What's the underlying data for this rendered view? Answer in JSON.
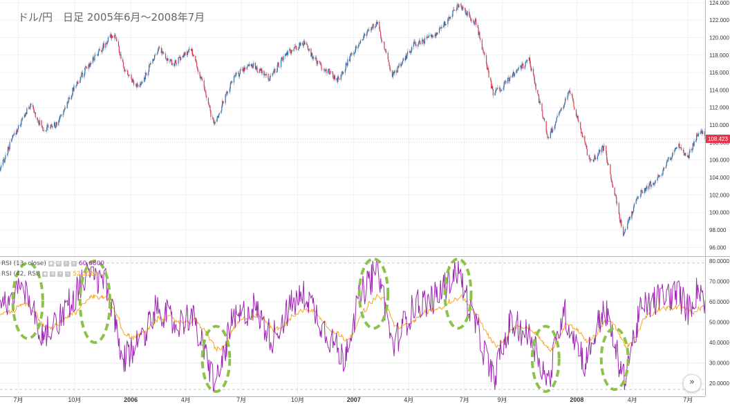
{
  "title": "ドル/円　日足 2005年6月～2008年7月",
  "colors": {
    "up": "#2a6fb0",
    "down": "#e8334a",
    "wick": "#8a98a8",
    "rsi13": "#9c27b0",
    "rsi42": "#f5a623",
    "grid": "#eef0f3",
    "axis_line": "#b2b5be",
    "highlight": "#8bc34a",
    "price_badge": "#e8334a"
  },
  "price_badge": "108.423",
  "legend": [
    {
      "label": "RSI (13, close)",
      "value": "60.6800"
    },
    {
      "label": "RSI (42, RSI)",
      "value": "52.2580"
    }
  ],
  "nav_glyph": "»",
  "chart_data": [
    {
      "type": "candlestick",
      "title": "ドル/円　日足 2005年6月～2008年7月",
      "ylim": [
        95,
        124.3
      ],
      "y_ticks": [
        "96.000",
        "98.000",
        "100.000",
        "102.000",
        "104.000",
        "106.000",
        "108.000",
        "110.000",
        "112.000",
        "114.000",
        "116.000",
        "118.000",
        "120.000",
        "122.000",
        "124.000"
      ],
      "last_price": 108.423,
      "x_tick_labels": [
        "7月",
        "10月",
        "2006",
        "4月",
        "7月",
        "10月",
        "2007",
        "4月",
        "7月",
        "9月",
        "2008",
        "4月",
        "7月"
      ],
      "anchors": [
        {
          "d": "2005-06-01",
          "p": 104.8
        },
        {
          "d": "2005-06-20",
          "p": 108.3
        },
        {
          "d": "2005-07-20",
          "p": 112.3
        },
        {
          "d": "2005-08-10",
          "p": 109.6
        },
        {
          "d": "2005-09-01",
          "p": 110.0
        },
        {
          "d": "2005-10-01",
          "p": 114.4
        },
        {
          "d": "2005-11-01",
          "p": 117.7
        },
        {
          "d": "2005-12-05",
          "p": 120.6
        },
        {
          "d": "2005-12-20",
          "p": 116.4
        },
        {
          "d": "2006-01-15",
          "p": 114.2
        },
        {
          "d": "2006-02-15",
          "p": 118.9
        },
        {
          "d": "2006-03-10",
          "p": 116.9
        },
        {
          "d": "2006-04-10",
          "p": 118.6
        },
        {
          "d": "2006-05-01",
          "p": 114.1
        },
        {
          "d": "2006-05-17",
          "p": 109.9
        },
        {
          "d": "2006-06-15",
          "p": 115.1
        },
        {
          "d": "2006-07-15",
          "p": 117.1
        },
        {
          "d": "2006-08-15",
          "p": 115.3
        },
        {
          "d": "2006-09-10",
          "p": 117.9
        },
        {
          "d": "2006-10-10",
          "p": 119.4
        },
        {
          "d": "2006-11-01",
          "p": 117.2
        },
        {
          "d": "2006-12-05",
          "p": 115.2
        },
        {
          "d": "2007-01-10",
          "p": 119.6
        },
        {
          "d": "2007-02-08",
          "p": 121.8
        },
        {
          "d": "2007-03-05",
          "p": 115.6
        },
        {
          "d": "2007-04-10",
          "p": 119.2
        },
        {
          "d": "2007-05-15",
          "p": 120.4
        },
        {
          "d": "2007-06-22",
          "p": 123.8
        },
        {
          "d": "2007-07-20",
          "p": 121.7
        },
        {
          "d": "2007-08-17",
          "p": 113.5
        },
        {
          "d": "2007-09-15",
          "p": 115.4
        },
        {
          "d": "2007-10-15",
          "p": 117.4
        },
        {
          "d": "2007-11-15",
          "p": 108.5
        },
        {
          "d": "2007-12-20",
          "p": 113.9
        },
        {
          "d": "2008-01-22",
          "p": 105.8
        },
        {
          "d": "2008-02-15",
          "p": 107.4
        },
        {
          "d": "2008-03-17",
          "p": 97.5
        },
        {
          "d": "2008-04-10",
          "p": 101.9
        },
        {
          "d": "2008-05-15",
          "p": 104.2
        },
        {
          "d": "2008-06-15",
          "p": 107.8
        },
        {
          "d": "2008-07-01",
          "p": 106.4
        },
        {
          "d": "2008-07-20",
          "p": 109.6
        },
        {
          "d": "2008-07-29",
          "p": 108.4
        }
      ]
    },
    {
      "type": "line",
      "series": [
        {
          "name": "RSI (13, close)",
          "last": 60.68
        },
        {
          "name": "RSI (42, RSI)",
          "last": 52.258
        }
      ],
      "ylim": [
        15,
        82
      ],
      "y_ticks": [
        "20.0000",
        "30.0000",
        "40.0000",
        "50.0000",
        "60.0000",
        "70.0000",
        "80.0000"
      ],
      "dashed_levels": [
        17,
        30,
        70,
        79
      ],
      "anchors": [
        {
          "d": "2005-06-01",
          "v": 55
        },
        {
          "d": "2005-07-10",
          "v": 68
        },
        {
          "d": "2005-08-10",
          "v": 42
        },
        {
          "d": "2005-09-15",
          "v": 56
        },
        {
          "d": "2005-10-20",
          "v": 72
        },
        {
          "d": "2005-11-20",
          "v": 70
        },
        {
          "d": "2005-12-20",
          "v": 30
        },
        {
          "d": "2006-01-20",
          "v": 44
        },
        {
          "d": "2006-02-15",
          "v": 58
        },
        {
          "d": "2006-03-15",
          "v": 48
        },
        {
          "d": "2006-04-10",
          "v": 54
        },
        {
          "d": "2006-05-20",
          "v": 19
        },
        {
          "d": "2006-06-15",
          "v": 49
        },
        {
          "d": "2006-07-20",
          "v": 58
        },
        {
          "d": "2006-08-20",
          "v": 42
        },
        {
          "d": "2006-09-20",
          "v": 58
        },
        {
          "d": "2006-10-15",
          "v": 64
        },
        {
          "d": "2006-11-15",
          "v": 46
        },
        {
          "d": "2006-12-15",
          "v": 32
        },
        {
          "d": "2007-01-10",
          "v": 62
        },
        {
          "d": "2007-02-10",
          "v": 77
        },
        {
          "d": "2007-03-05",
          "v": 38
        },
        {
          "d": "2007-04-10",
          "v": 58
        },
        {
          "d": "2007-05-15",
          "v": 62
        },
        {
          "d": "2007-06-20",
          "v": 76
        },
        {
          "d": "2007-07-20",
          "v": 48
        },
        {
          "d": "2007-08-17",
          "v": 22
        },
        {
          "d": "2007-09-15",
          "v": 50
        },
        {
          "d": "2007-10-20",
          "v": 42
        },
        {
          "d": "2007-11-15",
          "v": 20
        },
        {
          "d": "2007-12-10",
          "v": 56
        },
        {
          "d": "2008-01-15",
          "v": 30
        },
        {
          "d": "2008-02-15",
          "v": 58
        },
        {
          "d": "2008-03-17",
          "v": 22
        },
        {
          "d": "2008-04-15",
          "v": 56
        },
        {
          "d": "2008-05-15",
          "v": 62
        },
        {
          "d": "2008-06-15",
          "v": 64
        },
        {
          "d": "2008-07-01",
          "v": 56
        },
        {
          "d": "2008-07-20",
          "v": 68
        },
        {
          "d": "2008-07-29",
          "v": 60.68
        }
      ],
      "highlights": [
        {
          "from": "2005-06-22",
          "to": "2005-08-10",
          "vmin": 42,
          "vmax": 79
        },
        {
          "from": "2005-10-10",
          "to": "2005-11-28",
          "vmin": 40,
          "vmax": 80
        },
        {
          "from": "2006-04-28",
          "to": "2006-06-12",
          "vmin": 16,
          "vmax": 48
        },
        {
          "from": "2007-01-10",
          "to": "2007-02-26",
          "vmin": 47,
          "vmax": 81
        },
        {
          "from": "2007-05-30",
          "to": "2007-07-12",
          "vmin": 47,
          "vmax": 81
        },
        {
          "from": "2007-10-20",
          "to": "2007-12-03",
          "vmin": 16,
          "vmax": 48
        },
        {
          "from": "2008-02-10",
          "to": "2008-03-25",
          "vmin": 17,
          "vmax": 47
        }
      ]
    }
  ]
}
